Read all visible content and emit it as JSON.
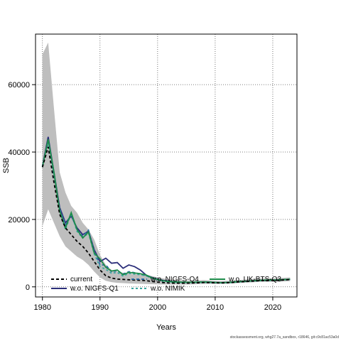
{
  "chart_data": {
    "type": "line",
    "xlabel": "Years",
    "ylabel": "SSB",
    "xlim": [
      1978.8,
      2024.2
    ],
    "ylim": [
      -3000,
      75000
    ],
    "xticks": [
      1980,
      1990,
      2000,
      2010,
      2020
    ],
    "yticks": [
      0,
      20000,
      40000,
      60000
    ],
    "grid": true,
    "legend_position": "bottom",
    "x": [
      1980,
      1981,
      1982,
      1983,
      1984,
      1985,
      1986,
      1987,
      1988,
      1989,
      1990,
      1991,
      1992,
      1993,
      1994,
      1995,
      1996,
      1997,
      1998,
      1999,
      2000,
      2001,
      2002,
      2003,
      2004,
      2005,
      2006,
      2007,
      2008,
      2009,
      2010,
      2011,
      2012,
      2013,
      2014,
      2015,
      2016,
      2017,
      2018,
      2019,
      2020,
      2021,
      2022,
      2023
    ],
    "band": {
      "name": "confidence interval",
      "color": "#bebebe",
      "lower": [
        18000,
        23000,
        19000,
        15000,
        12000,
        10500,
        9000,
        8000,
        6500,
        4500,
        2800,
        1800,
        1400,
        1200,
        1100,
        1000,
        950,
        900,
        850,
        800,
        750,
        700,
        700,
        700,
        700,
        700,
        750,
        800,
        850,
        900,
        900,
        900,
        950,
        1000,
        1100,
        1200,
        1300,
        1400,
        1500,
        1500,
        1500,
        1500,
        1600,
        1700
      ],
      "upper": [
        69000,
        72500,
        53000,
        34000,
        28000,
        24000,
        22000,
        19000,
        17000,
        14000,
        9500,
        6500,
        5000,
        4500,
        4200,
        3900,
        3800,
        3700,
        3500,
        3200,
        2800,
        2500,
        2200,
        2100,
        2000,
        1900,
        1850,
        1900,
        2000,
        1900,
        1800,
        1750,
        1800,
        1850,
        2000,
        2150,
        2300,
        2400,
        2500,
        2500,
        2500,
        2600,
        2700,
        2800
      ]
    },
    "series": [
      {
        "name": "current",
        "color": "#000000",
        "dash": "4,3",
        "width": 1.8,
        "values": [
          35500,
          41500,
          31000,
          21500,
          17500,
          15500,
          13500,
          12000,
          10000,
          7500,
          5000,
          3300,
          2600,
          2300,
          2200,
          2100,
          2000,
          1950,
          1850,
          1600,
          1400,
          1250,
          1150,
          1100,
          1100,
          1100,
          1150,
          1200,
          1300,
          1250,
          1200,
          1150,
          1200,
          1300,
          1450,
          1550,
          1650,
          1750,
          1850,
          1900,
          1900,
          1950,
          2050,
          2150
        ]
      },
      {
        "name": "w.o. NIGFS-Q1",
        "color": "#2c2f7a",
        "dash": "",
        "width": 1.8,
        "values": [
          35800,
          44500,
          34000,
          23500,
          19000,
          21000,
          17500,
          15500,
          16500,
          11000,
          7500,
          8500,
          7000,
          7200,
          5500,
          6500,
          6000,
          5000,
          3500,
          2800,
          2300,
          1900,
          1700,
          1500,
          1400,
          1350,
          1350,
          1400,
          1450,
          1400,
          1300,
          1250,
          1300,
          1400,
          1550,
          1650,
          1750,
          1850,
          1950,
          2000,
          2000,
          2050,
          2150,
          2250
        ]
      },
      {
        "name": "w.o. NIGFS-Q4",
        "color": "#2d6ea6",
        "dash": "4,3",
        "width": 1.8,
        "values": [
          35600,
          43000,
          33000,
          23000,
          18500,
          21500,
          17000,
          15000,
          16800,
          10500,
          6500,
          6500,
          4500,
          4800,
          3800,
          4500,
          4200,
          3800,
          3300,
          2600,
          2100,
          1700,
          1550,
          1400,
          1350,
          1300,
          1300,
          1350,
          1400,
          1350,
          1250,
          1200,
          1250,
          1350,
          1500,
          1600,
          1700,
          1800,
          1900,
          1950,
          1950,
          2000,
          2100,
          2200
        ]
      },
      {
        "name": "w.o. NIMIK",
        "color": "#3ba7a0",
        "dash": "3,3",
        "width": 1.8,
        "values": [
          35700,
          43500,
          33500,
          22500,
          17000,
          21800,
          16500,
          14500,
          16000,
          9800,
          6000,
          5200,
          4000,
          4300,
          3200,
          4000,
          3800,
          3600,
          3300,
          2600,
          2050,
          1650,
          1500,
          1350,
          1300,
          1250,
          1250,
          1300,
          1350,
          1300,
          1200,
          1150,
          1200,
          1300,
          1450,
          1550,
          1650,
          1750,
          1850,
          1900,
          1900,
          1950,
          2050,
          2150
        ]
      },
      {
        "name": "w.o. UK-BTS-Q3",
        "color": "#1e8c4a",
        "dash": "",
        "width": 1.8,
        "values": [
          35500,
          43800,
          34000,
          22500,
          17500,
          22000,
          17000,
          14500,
          16300,
          10000,
          8300,
          5800,
          4700,
          5000,
          3600,
          4300,
          4100,
          3900,
          3500,
          2700,
          2200,
          1800,
          1600,
          1450,
          1400,
          1350,
          1350,
          1400,
          1450,
          1400,
          1300,
          1250,
          1300,
          1400,
          1550,
          1650,
          1750,
          1850,
          1950,
          2000,
          2000,
          2050,
          2150,
          2250
        ]
      }
    ]
  },
  "footer": "stockassessment.org, whg27.7a_sandbox, r18646, git:c9c81ac53a0d"
}
